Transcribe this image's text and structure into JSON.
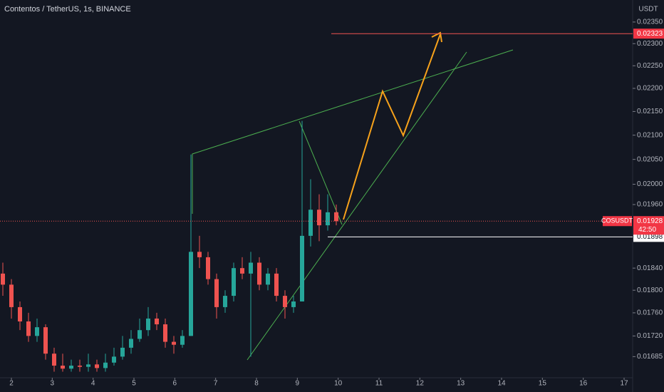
{
  "header": {
    "title": "Contentos / TetherUS, 1s, BINANCE",
    "currency": "USDT"
  },
  "price_range": [
    0.0165,
    0.02402
  ],
  "price_axis": [
    {
      "value": 0.0235,
      "label": "0.02350"
    },
    {
      "value": 0.023,
      "label": "0.02300"
    },
    {
      "value": 0.0225,
      "label": "0.02250"
    },
    {
      "value": 0.022,
      "label": "0.02200"
    },
    {
      "value": 0.0215,
      "label": "0.02150"
    },
    {
      "value": 0.021,
      "label": "0.02100"
    },
    {
      "value": 0.0205,
      "label": "0.02050"
    },
    {
      "value": 0.02,
      "label": "0.02000"
    },
    {
      "value": 0.0196,
      "label": "0.01960"
    },
    {
      "value": 0.0184,
      "label": "0.01840"
    },
    {
      "value": 0.018,
      "label": "0.01800"
    },
    {
      "value": 0.0176,
      "label": "0.01760"
    },
    {
      "value": 0.0172,
      "label": "0.01720"
    },
    {
      "value": 0.01685,
      "label": "0.01685"
    }
  ],
  "time_range": [
    2,
    17
  ],
  "time_axis": [
    2,
    3,
    4,
    5,
    6,
    7,
    8,
    9,
    10,
    11,
    12,
    13,
    14,
    15,
    16,
    17
  ],
  "target": {
    "value": 0.02323,
    "label": "0.02323"
  },
  "current": {
    "symbol": "COSUSDT",
    "value": 0.01928,
    "label": "0.01928",
    "countdown": "42:50"
  },
  "level": {
    "value": 0.01898,
    "label": "0.01898"
  },
  "candles": [
    [
      0.0183,
      0.0185,
      0.0179,
      0.0181
    ],
    [
      0.0181,
      0.0182,
      0.0175,
      0.0177
    ],
    [
      0.0177,
      0.0178,
      0.0173,
      0.01745
    ],
    [
      0.01745,
      0.0176,
      0.0171,
      0.0172
    ],
    [
      0.0172,
      0.0175,
      0.0171,
      0.01735
    ],
    [
      0.01735,
      0.0174,
      0.0168,
      0.0169
    ],
    [
      0.0169,
      0.017,
      0.0166,
      0.0167
    ],
    [
      0.0167,
      0.0169,
      0.0166,
      0.01665
    ],
    [
      0.01665,
      0.0168,
      0.0166,
      0.0167
    ],
    [
      0.0167,
      0.0168,
      0.0166,
      0.01668
    ],
    [
      0.01668,
      0.0169,
      0.0166,
      0.01672
    ],
    [
      0.01672,
      0.0168,
      0.0166,
      0.01666
    ],
    [
      0.01666,
      0.0169,
      0.0166,
      0.01675
    ],
    [
      0.01675,
      0.017,
      0.0167,
      0.01685
    ],
    [
      0.01685,
      0.0172,
      0.0168,
      0.017
    ],
    [
      0.017,
      0.0173,
      0.0169,
      0.01715
    ],
    [
      0.01715,
      0.0175,
      0.0171,
      0.0173
    ],
    [
      0.0173,
      0.0177,
      0.0172,
      0.0175
    ],
    [
      0.0175,
      0.0176,
      0.0173,
      0.0174
    ],
    [
      0.0174,
      0.0175,
      0.017,
      0.0171
    ],
    [
      0.0171,
      0.0172,
      0.0169,
      0.01705
    ],
    [
      0.01705,
      0.0173,
      0.017,
      0.0172
    ],
    [
      0.0172,
      0.0206,
      0.0172,
      0.0187
    ],
    [
      0.0187,
      0.019,
      0.0184,
      0.0186
    ],
    [
      0.0186,
      0.0187,
      0.0181,
      0.0182
    ],
    [
      0.0182,
      0.0183,
      0.0175,
      0.0177
    ],
    [
      0.0177,
      0.018,
      0.0176,
      0.0179
    ],
    [
      0.0179,
      0.0185,
      0.0178,
      0.0184
    ],
    [
      0.0184,
      0.0186,
      0.0182,
      0.0183
    ],
    [
      0.0183,
      0.0187,
      0.01685,
      0.0185
    ],
    [
      0.0185,
      0.0186,
      0.018,
      0.0181
    ],
    [
      0.0181,
      0.0184,
      0.018,
      0.0183
    ],
    [
      0.0183,
      0.0184,
      0.0178,
      0.0179
    ],
    [
      0.0179,
      0.018,
      0.0175,
      0.0177
    ],
    [
      0.0177,
      0.0179,
      0.0176,
      0.0178
    ],
    [
      0.0178,
      0.0213,
      0.0178,
      0.019
    ],
    [
      0.019,
      0.0201,
      0.0188,
      0.0195
    ],
    [
      0.0195,
      0.0198,
      0.0189,
      0.0192
    ],
    [
      0.0192,
      0.0198,
      0.0191,
      0.01945
    ],
    [
      0.01945,
      0.0196,
      0.0192,
      0.01928
    ]
  ]
}
